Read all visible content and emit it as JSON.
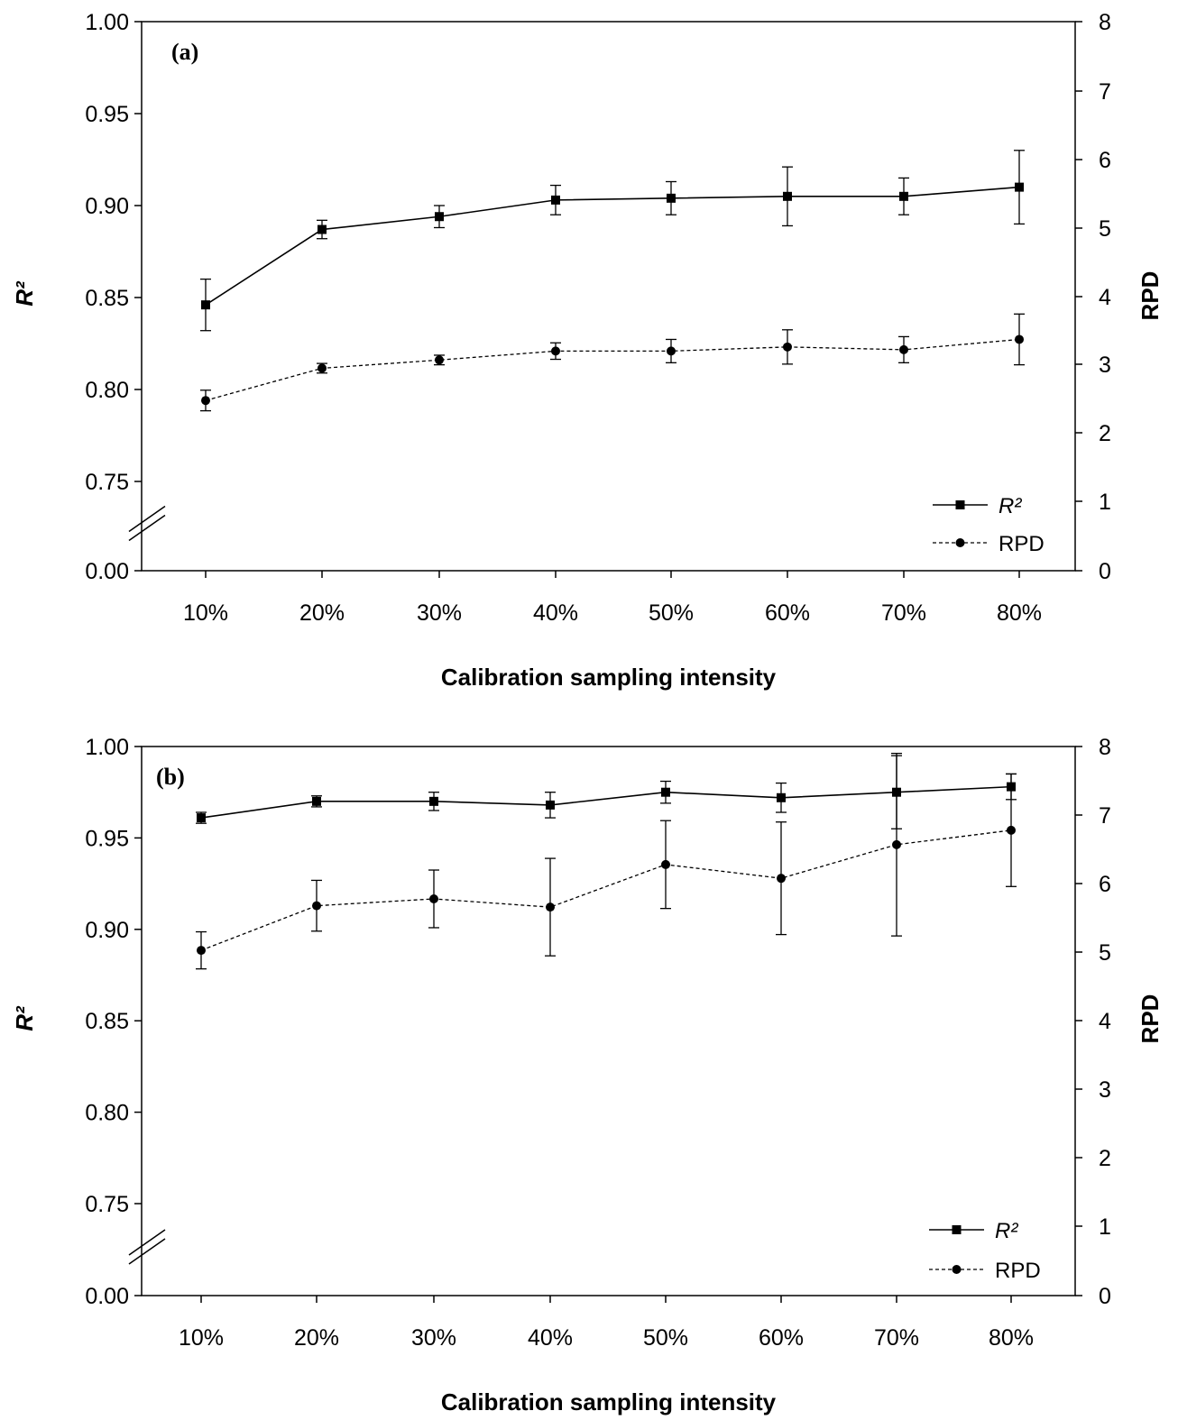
{
  "chart_data": [
    {
      "type": "line",
      "panel_label": "(a)",
      "categories": [
        "10%",
        "20%",
        "30%",
        "40%",
        "50%",
        "60%",
        "70%",
        "80%"
      ],
      "xlabel": "Calibration sampling intensity",
      "ylabel_left": "R²",
      "ylabel_right": "RPD",
      "y_left_ticks": [
        "0.00",
        "0.75",
        "0.80",
        "0.85",
        "0.90",
        "0.95",
        "1.00"
      ],
      "y_left_range": [
        0.75,
        1.0
      ],
      "y_left_axis_break": true,
      "y_right_ticks": [
        "0",
        "1",
        "2",
        "3",
        "4",
        "5",
        "6",
        "7",
        "8"
      ],
      "y_right_range": [
        0,
        8
      ],
      "legend_placement": "bottom-right",
      "series": [
        {
          "name": "R²",
          "axis": "left",
          "marker": "square",
          "line": "solid",
          "values": [
            0.846,
            0.887,
            0.894,
            0.903,
            0.904,
            0.905,
            0.905,
            0.91
          ],
          "error": [
            0.014,
            0.005,
            0.006,
            0.008,
            0.009,
            0.016,
            0.01,
            0.02
          ]
        },
        {
          "name": "RPD",
          "axis": "right",
          "marker": "circle",
          "line": "dashed",
          "values": [
            2.48,
            2.95,
            3.07,
            3.2,
            3.2,
            3.26,
            3.22,
            3.37
          ],
          "error": [
            0.15,
            0.07,
            0.07,
            0.12,
            0.17,
            0.25,
            0.19,
            0.37
          ]
        }
      ]
    },
    {
      "type": "line",
      "panel_label": "(b)",
      "categories": [
        "10%",
        "20%",
        "30%",
        "40%",
        "50%",
        "60%",
        "70%",
        "80%"
      ],
      "xlabel": "Calibration sampling intensity",
      "ylabel_left": "R²",
      "ylabel_right": "RPD",
      "y_left_ticks": [
        "0.00",
        "0.75",
        "0.80",
        "0.85",
        "0.90",
        "0.95",
        "1.00"
      ],
      "y_left_range": [
        0.75,
        1.0
      ],
      "y_left_axis_break": true,
      "y_right_ticks": [
        "0",
        "1",
        "2",
        "3",
        "4",
        "5",
        "6",
        "7",
        "8"
      ],
      "y_right_range": [
        0,
        8
      ],
      "legend_placement": "bottom-right",
      "series": [
        {
          "name": "R²",
          "axis": "left",
          "marker": "square",
          "line": "solid",
          "values": [
            0.961,
            0.97,
            0.97,
            0.968,
            0.975,
            0.972,
            0.975,
            0.978
          ],
          "error": [
            0.003,
            0.003,
            0.005,
            0.007,
            0.006,
            0.008,
            0.02,
            0.007
          ]
        },
        {
          "name": "RPD",
          "axis": "right",
          "marker": "circle",
          "line": "dashed",
          "values": [
            5.03,
            5.68,
            5.78,
            5.66,
            6.28,
            6.08,
            6.57,
            6.78
          ],
          "error": [
            0.27,
            0.37,
            0.42,
            0.71,
            0.64,
            0.82,
            1.33,
            0.82
          ]
        }
      ]
    }
  ]
}
